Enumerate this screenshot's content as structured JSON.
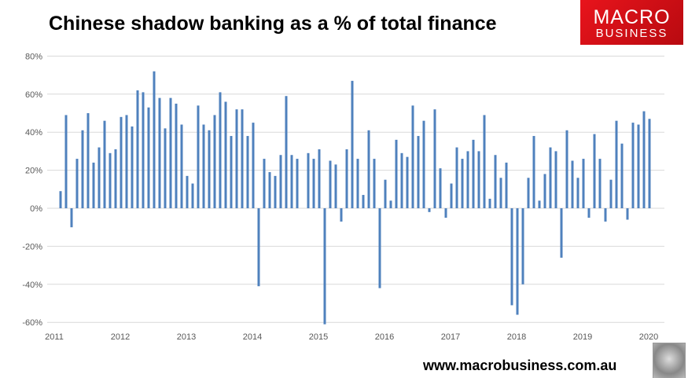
{
  "title": "Chinese shadow banking as a % of total finance",
  "logo": {
    "line1": "MACRO",
    "line2": "BUSINESS"
  },
  "footer": {
    "website": "www.macrobusiness.com.au"
  },
  "colors": {
    "bar": "#4f81bd",
    "logo_red": "#e8141c",
    "grid": "#d9d9d9"
  },
  "chart_data": {
    "type": "bar",
    "title": "Chinese shadow banking as a % of total finance",
    "xlabel": "",
    "ylabel": "",
    "ylim": [
      -60,
      80
    ],
    "yticks": [
      -60,
      -40,
      -20,
      0,
      20,
      40,
      60,
      80
    ],
    "ytick_labels": [
      "-60%",
      "-40%",
      "-20%",
      "0%",
      "20%",
      "40%",
      "60%",
      "80%"
    ],
    "xtick_labels": [
      "2011",
      "2012",
      "2013",
      "2014",
      "2015",
      "2016",
      "2017",
      "2018",
      "2019",
      "2020"
    ],
    "grid": true,
    "legend": "none",
    "x": [
      "2011-02",
      "2011-03",
      "2011-04",
      "2011-05",
      "2011-06",
      "2011-07",
      "2011-08",
      "2011-09",
      "2011-10",
      "2011-11",
      "2011-12",
      "2012-01",
      "2012-02",
      "2012-03",
      "2012-04",
      "2012-05",
      "2012-06",
      "2012-07",
      "2012-08",
      "2012-09",
      "2012-10",
      "2012-11",
      "2012-12",
      "2013-01",
      "2013-02",
      "2013-03",
      "2013-04",
      "2013-05",
      "2013-06",
      "2013-07",
      "2013-08",
      "2013-09",
      "2013-10",
      "2013-11",
      "2013-12",
      "2014-01",
      "2014-02",
      "2014-03",
      "2014-04",
      "2014-05",
      "2014-06",
      "2014-07",
      "2014-08",
      "2014-09",
      "2014-10",
      "2014-11",
      "2014-12",
      "2015-01",
      "2015-02",
      "2015-03",
      "2015-04",
      "2015-05",
      "2015-06",
      "2015-07",
      "2015-08",
      "2015-09",
      "2015-10",
      "2015-11",
      "2015-12",
      "2016-01",
      "2016-02",
      "2016-03",
      "2016-04",
      "2016-05",
      "2016-06",
      "2016-07",
      "2016-08",
      "2016-09",
      "2016-10",
      "2016-11",
      "2016-12",
      "2017-01",
      "2017-02",
      "2017-03",
      "2017-04",
      "2017-05",
      "2017-06",
      "2017-07",
      "2017-08",
      "2017-09",
      "2017-10",
      "2017-11",
      "2017-12",
      "2018-01",
      "2018-02",
      "2018-03",
      "2018-04",
      "2018-05",
      "2018-06",
      "2018-07",
      "2018-08",
      "2018-09",
      "2018-10",
      "2018-11",
      "2018-12",
      "2019-01",
      "2019-02",
      "2019-03",
      "2019-04",
      "2019-05",
      "2019-06",
      "2019-07",
      "2019-08",
      "2019-09",
      "2019-10",
      "2019-11",
      "2019-12",
      "2020-01"
    ],
    "values": [
      9,
      49,
      -10,
      26,
      41,
      50,
      24,
      32,
      46,
      29,
      31,
      48,
      49,
      43,
      62,
      61,
      53,
      72,
      58,
      42,
      58,
      55,
      44,
      17,
      13,
      54,
      44,
      41,
      49,
      61,
      56,
      38,
      52,
      52,
      38,
      45,
      -41,
      26,
      19,
      17,
      28,
      59,
      28,
      26,
      0,
      29,
      26,
      31,
      -61,
      25,
      23,
      -7,
      31,
      67,
      26,
      7,
      41,
      26,
      -42,
      15,
      4,
      36,
      29,
      27,
      54,
      38,
      46,
      -2,
      52,
      21,
      -5,
      13,
      32,
      26,
      30,
      36,
      30,
      49,
      5,
      28,
      16,
      24,
      -51,
      -56,
      -40,
      16,
      38,
      4,
      18,
      32,
      30,
      -26,
      41,
      25,
      16,
      26,
      -5,
      39,
      26,
      -7,
      15,
      46,
      34,
      -6,
      45,
      44,
      51,
      47
    ]
  }
}
